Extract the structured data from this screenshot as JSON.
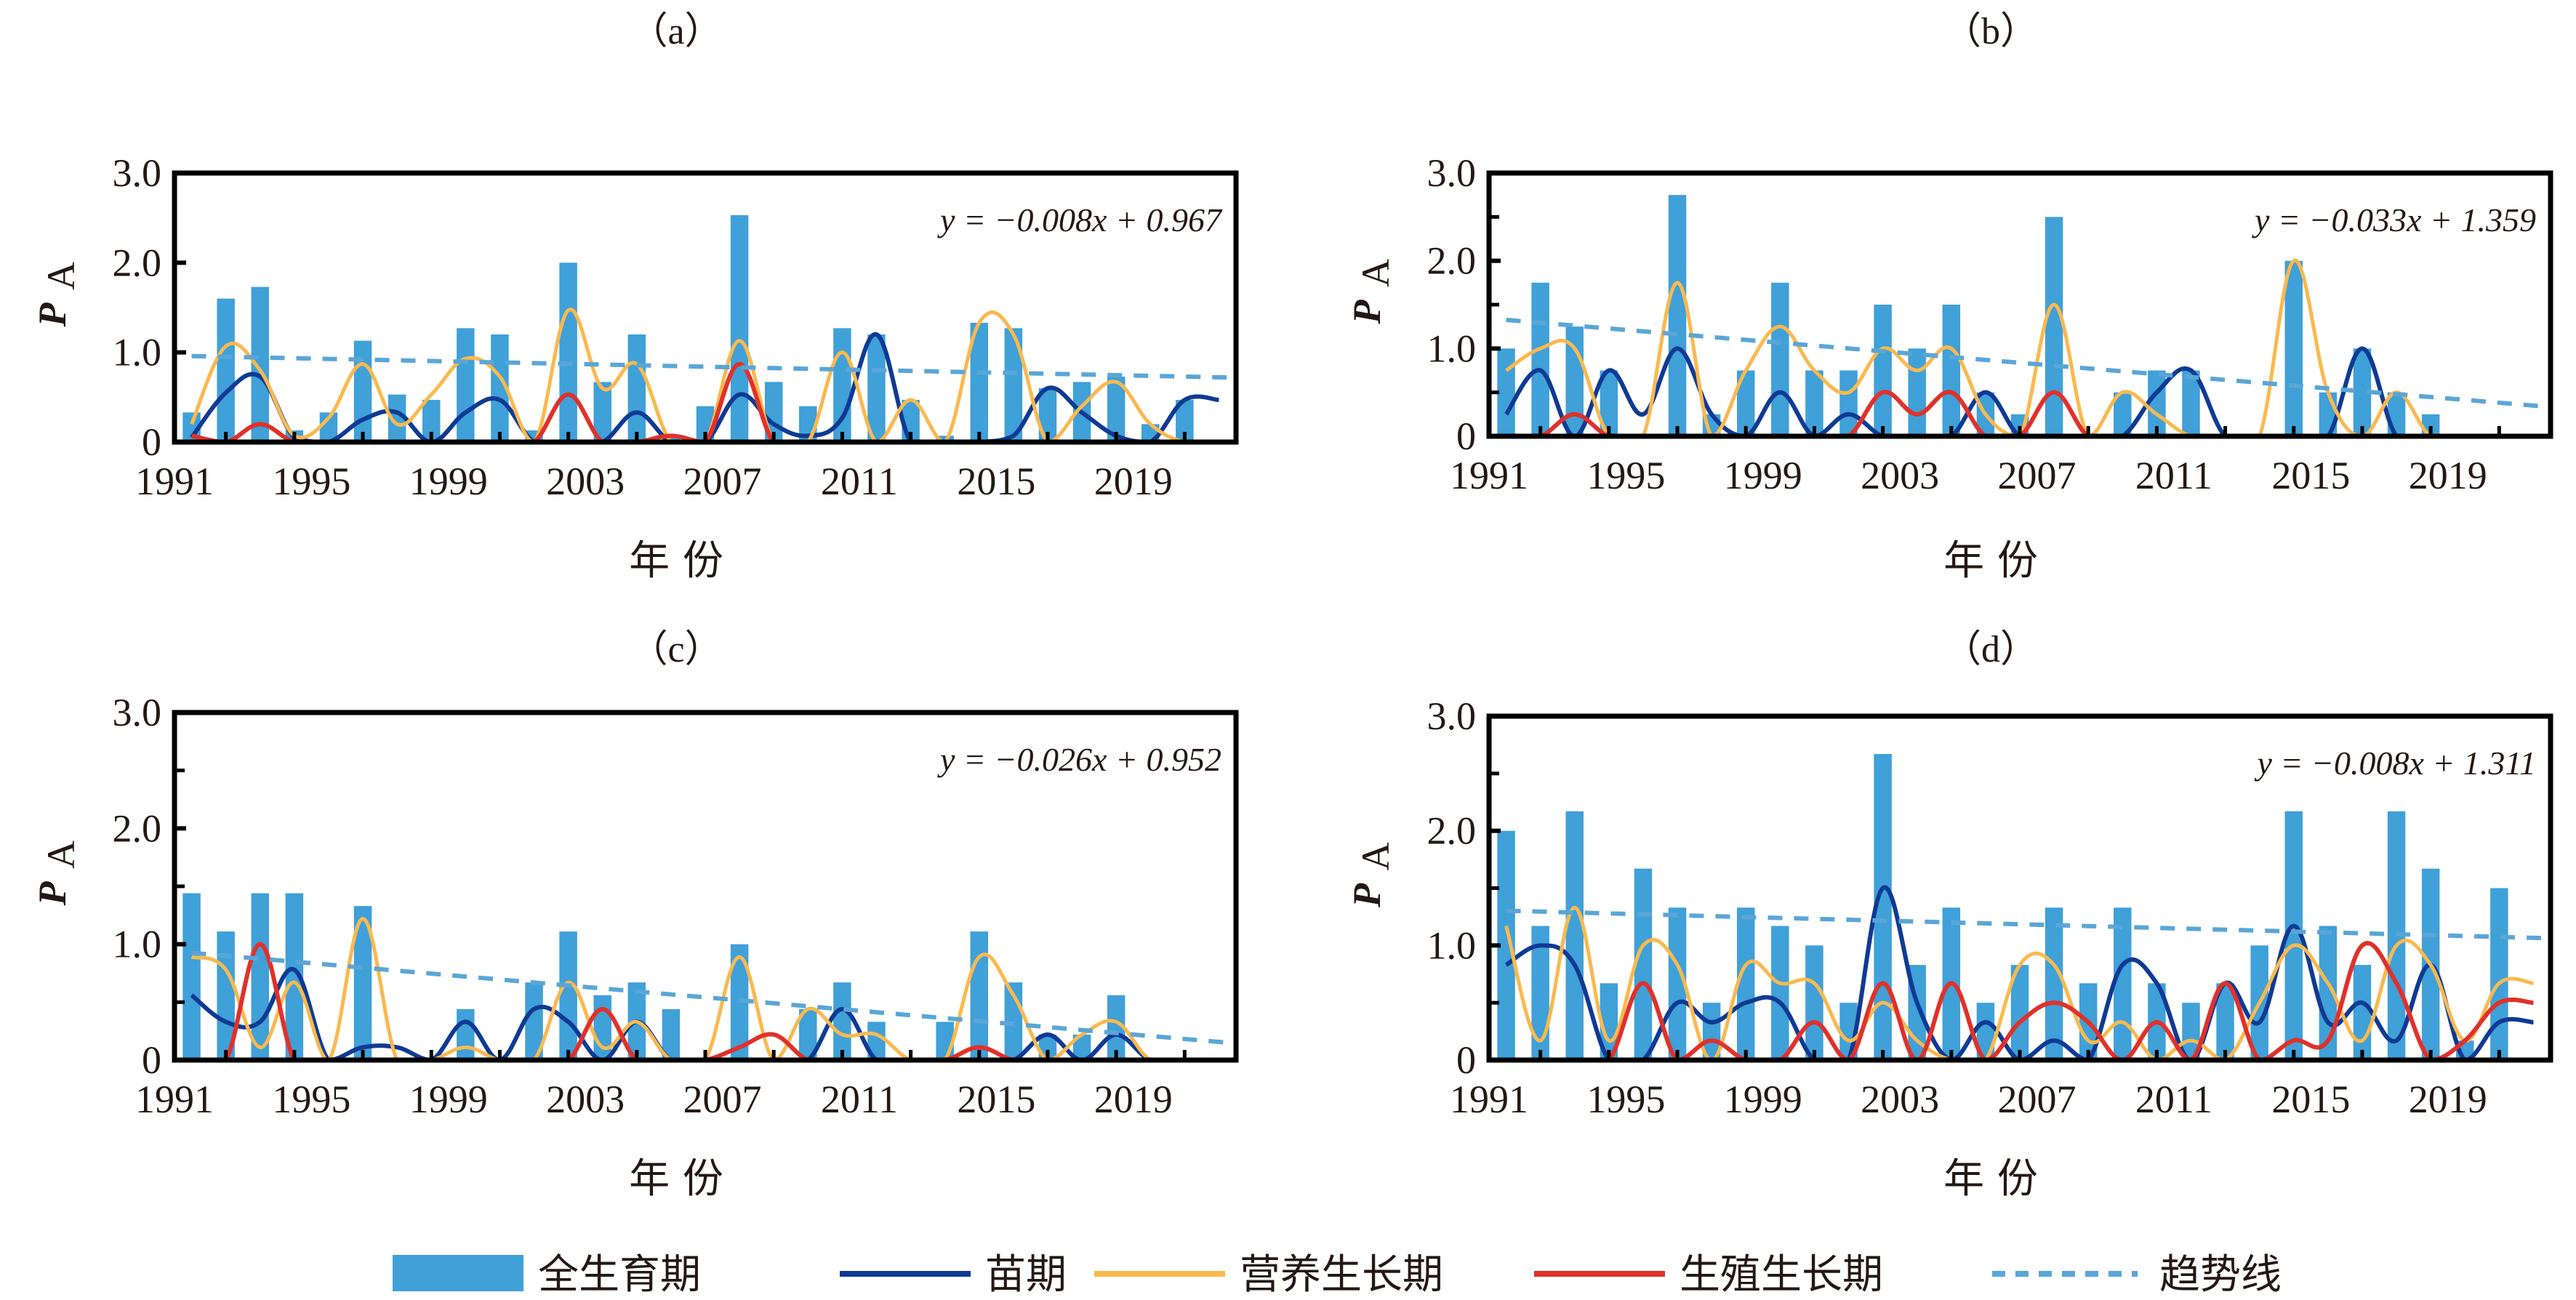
{
  "colors": {
    "bar": "#40a0d8",
    "seedling": "#0f3a94",
    "vegetative": "#f9b94e",
    "reproductive": "#e0312a",
    "trend": "#5aa6d6"
  },
  "legend": {
    "placement": "bottom-center",
    "items": [
      {
        "key": "bar",
        "label": "全生育期",
        "type": "bar"
      },
      {
        "key": "seedling",
        "label": "苗期",
        "type": "line"
      },
      {
        "key": "vegetative",
        "label": "营养生长期",
        "type": "line"
      },
      {
        "key": "reproductive",
        "label": "生殖生长期",
        "type": "line"
      },
      {
        "key": "trend",
        "label": "趋势线",
        "type": "dashed"
      }
    ]
  },
  "chart_data": [
    {
      "type": "bar",
      "panel_label": "（a）",
      "xlabel": "年 份",
      "ylabel": "P",
      "ylabel_sub": "A",
      "equation": "y = −0.008x + 0.967",
      "ylim": [
        0,
        3.0
      ],
      "yticks": [
        "0",
        "1.0",
        "2.0",
        "3.0"
      ],
      "xticks": [
        "1991",
        "1995",
        "1999",
        "2003",
        "2007",
        "2011",
        "2015",
        "2019"
      ],
      "years": [
        1991,
        1992,
        1993,
        1994,
        1995,
        1996,
        1997,
        1998,
        1999,
        2000,
        2001,
        2002,
        2003,
        2004,
        2005,
        2006,
        2007,
        2008,
        2009,
        2010,
        2011,
        2012,
        2013,
        2014,
        2015,
        2016,
        2017,
        2018,
        2019,
        2020,
        2021
      ],
      "series": [
        {
          "name": "全生育期",
          "key": "bar",
          "values": [
            0.33,
            1.6,
            1.73,
            0.13,
            0.33,
            1.13,
            0.53,
            0.47,
            1.27,
            1.2,
            0.13,
            2.0,
            0.67,
            1.2,
            0.07,
            0.4,
            2.53,
            0.67,
            0.4,
            1.27,
            1.2,
            0.47,
            0.07,
            1.33,
            1.27,
            0.6,
            0.67,
            0.73,
            0.2,
            0.47,
            0.0
          ]
        },
        {
          "name": "苗期",
          "key": "seedling",
          "values": [
            0.05,
            0.55,
            0.73,
            0.05,
            0.0,
            0.25,
            0.33,
            0.0,
            0.33,
            0.47,
            0.0,
            0.0,
            0.0,
            0.33,
            0.0,
            0.0,
            0.53,
            0.2,
            0.07,
            0.27,
            1.2,
            0.0,
            0.0,
            0.0,
            0.07,
            0.6,
            0.33,
            0.07,
            0.0,
            0.47,
            0.47
          ]
        },
        {
          "name": "营养生长期",
          "key": "vegetative",
          "values": [
            0.2,
            1.07,
            0.8,
            0.07,
            0.27,
            0.87,
            0.2,
            0.53,
            0.93,
            0.73,
            0.0,
            1.47,
            0.6,
            0.87,
            0.0,
            0.0,
            1.13,
            0.0,
            0.0,
            1.0,
            0.0,
            0.47,
            0.0,
            1.33,
            1.2,
            0.0,
            0.4,
            0.67,
            0.2,
            0.0,
            0.0
          ]
        },
        {
          "name": "生殖生长期",
          "key": "reproductive",
          "values": [
            0.07,
            0.0,
            0.2,
            0.0,
            0.0,
            0.0,
            0.0,
            0.0,
            0.0,
            0.0,
            0.0,
            0.53,
            0.0,
            0.0,
            0.07,
            0.0,
            0.87,
            0.0,
            0.0,
            0.0,
            0.0,
            0.0,
            0.0,
            0.0,
            0.0,
            0.0,
            0.0,
            0.0,
            0.0,
            0.0,
            0.0
          ]
        }
      ],
      "trend": {
        "slope": -0.008,
        "intercept": 0.967
      }
    },
    {
      "type": "bar",
      "panel_label": "（b）",
      "xlabel": "年 份",
      "ylabel": "P",
      "ylabel_sub": "A",
      "equation": "y = −0.033x + 1.359",
      "ylim": [
        0,
        3.0
      ],
      "yticks": [
        "0",
        "1.0",
        "2.0",
        "3.0"
      ],
      "xticks": [
        "1991",
        "1995",
        "1999",
        "2003",
        "2007",
        "2011",
        "2015",
        "2019"
      ],
      "years": [
        1991,
        1992,
        1993,
        1994,
        1995,
        1996,
        1997,
        1998,
        1999,
        2000,
        2001,
        2002,
        2003,
        2004,
        2005,
        2006,
        2007,
        2008,
        2009,
        2010,
        2011,
        2012,
        2013,
        2014,
        2015,
        2016,
        2017,
        2018,
        2019,
        2020,
        2021
      ],
      "series": [
        {
          "name": "全生育期",
          "key": "bar",
          "values": [
            1.0,
            1.75,
            1.25,
            0.75,
            0.0,
            2.75,
            0.25,
            0.75,
            1.75,
            0.75,
            0.75,
            1.5,
            1.0,
            1.5,
            0.5,
            0.25,
            2.5,
            0.0,
            0.5,
            0.75,
            0.75,
            0.0,
            0.0,
            2.0,
            0.5,
            1.0,
            0.5,
            0.25,
            0.0,
            0.0,
            0.0
          ]
        },
        {
          "name": "苗期",
          "key": "seedling",
          "values": [
            0.25,
            0.75,
            0.0,
            0.75,
            0.25,
            1.0,
            0.25,
            0.0,
            0.5,
            0.0,
            0.25,
            0.0,
            0.0,
            0.0,
            0.5,
            0.0,
            0.0,
            0.0,
            0.0,
            0.5,
            0.75,
            0.0,
            0.0,
            0.0,
            0.0,
            1.0,
            0.0,
            0.0,
            0.0,
            0.0,
            0.0
          ]
        },
        {
          "name": "营养生长期",
          "key": "vegetative",
          "values": [
            0.75,
            1.0,
            1.0,
            0.0,
            0.0,
            1.75,
            0.0,
            0.75,
            1.25,
            0.75,
            0.5,
            1.0,
            0.75,
            1.0,
            0.25,
            0.0,
            1.5,
            0.0,
            0.5,
            0.25,
            0.0,
            0.0,
            0.0,
            2.0,
            0.5,
            0.0,
            0.5,
            0.0,
            0.0,
            0.0,
            0.0
          ]
        },
        {
          "name": "生殖生长期",
          "key": "reproductive",
          "values": [
            0.0,
            0.0,
            0.25,
            0.0,
            0.0,
            0.0,
            0.0,
            0.0,
            0.0,
            0.0,
            0.0,
            0.5,
            0.25,
            0.5,
            0.0,
            0.0,
            0.5,
            0.0,
            0.0,
            0.0,
            0.0,
            0.0,
            0.0,
            0.0,
            0.0,
            0.0,
            0.0,
            0.0,
            0.0,
            0.0,
            0.0
          ]
        }
      ],
      "trend": {
        "slope": -0.033,
        "intercept": 1.359
      }
    },
    {
      "type": "bar",
      "panel_label": "（c）",
      "xlabel": "年 份",
      "ylabel": "P",
      "ylabel_sub": "A",
      "equation": "y = −0.026x + 0.952",
      "ylim": [
        0,
        3.0
      ],
      "yticks": [
        "0",
        "1.0",
        "2.0",
        "3.0"
      ],
      "xticks": [
        "1991",
        "1995",
        "1999",
        "2003",
        "2007",
        "2011",
        "2015",
        "2019"
      ],
      "years": [
        1991,
        1992,
        1993,
        1994,
        1995,
        1996,
        1997,
        1998,
        1999,
        2000,
        2001,
        2002,
        2003,
        2004,
        2005,
        2006,
        2007,
        2008,
        2009,
        2010,
        2011,
        2012,
        2013,
        2014,
        2015,
        2016,
        2017,
        2018,
        2019,
        2020,
        2021
      ],
      "series": [
        {
          "name": "全生育期",
          "key": "bar",
          "values": [
            1.44,
            1.11,
            1.44,
            1.44,
            0.0,
            1.33,
            0.0,
            0.0,
            0.44,
            0.0,
            0.67,
            1.11,
            0.56,
            0.67,
            0.44,
            0.0,
            1.0,
            0.0,
            0.44,
            0.67,
            0.33,
            0.0,
            0.33,
            1.11,
            0.67,
            0.22,
            0.22,
            0.56,
            0.0,
            0.0,
            0.0
          ]
        },
        {
          "name": "苗期",
          "key": "seedling",
          "values": [
            0.56,
            0.33,
            0.33,
            0.78,
            0.0,
            0.11,
            0.11,
            0.0,
            0.33,
            0.0,
            0.44,
            0.33,
            0.0,
            0.33,
            0.0,
            0.0,
            0.0,
            0.0,
            0.0,
            0.44,
            0.0,
            0.0,
            0.0,
            0.0,
            0.0,
            0.22,
            0.0,
            0.22,
            0.0,
            0.0,
            0.0
          ]
        },
        {
          "name": "营养生长期",
          "key": "vegetative",
          "values": [
            0.89,
            0.78,
            0.11,
            0.67,
            0.0,
            1.22,
            0.0,
            0.0,
            0.11,
            0.0,
            0.0,
            0.67,
            0.11,
            0.33,
            0.0,
            0.0,
            0.89,
            0.0,
            0.44,
            0.22,
            0.22,
            0.0,
            0.0,
            0.89,
            0.56,
            0.0,
            0.22,
            0.33,
            0.0,
            0.0,
            0.0
          ]
        },
        {
          "name": "生殖生长期",
          "key": "reproductive",
          "values": [
            0.0,
            0.0,
            1.0,
            0.0,
            0.0,
            0.0,
            0.0,
            0.0,
            0.0,
            0.0,
            0.0,
            0.0,
            0.44,
            0.0,
            0.0,
            0.0,
            0.11,
            0.22,
            0.0,
            0.0,
            0.0,
            0.0,
            0.0,
            0.11,
            0.0,
            0.0,
            0.0,
            0.0,
            0.0,
            0.0,
            0.0
          ]
        }
      ],
      "trend": {
        "slope": -0.026,
        "intercept": 0.952
      }
    },
    {
      "type": "bar",
      "panel_label": "（d）",
      "xlabel": "年 份",
      "ylabel": "P",
      "ylabel_sub": "A",
      "equation": "y = −0.008x + 1.311",
      "ylim": [
        0,
        3.0
      ],
      "yticks": [
        "0",
        "1.0",
        "2.0",
        "3.0"
      ],
      "xticks": [
        "1991",
        "1995",
        "1999",
        "2003",
        "2007",
        "2011",
        "2015",
        "2019"
      ],
      "years": [
        1991,
        1992,
        1993,
        1994,
        1995,
        1996,
        1997,
        1998,
        1999,
        2000,
        2001,
        2002,
        2003,
        2004,
        2005,
        2006,
        2007,
        2008,
        2009,
        2010,
        2011,
        2012,
        2013,
        2014,
        2015,
        2016,
        2017,
        2018,
        2019,
        2020,
        2021
      ],
      "series": [
        {
          "name": "全生育期",
          "key": "bar",
          "values": [
            2.0,
            1.17,
            2.17,
            0.67,
            1.67,
            1.33,
            0.5,
            1.33,
            1.17,
            1.0,
            0.5,
            2.67,
            0.83,
            1.33,
            0.5,
            0.83,
            1.33,
            0.67,
            1.33,
            0.67,
            0.5,
            0.67,
            1.0,
            2.17,
            1.17,
            0.83,
            2.17,
            1.67,
            0.17,
            1.5,
            0.0
          ]
        },
        {
          "name": "苗期",
          "key": "seedling",
          "values": [
            0.83,
            1.0,
            0.83,
            0.0,
            0.0,
            0.5,
            0.33,
            0.5,
            0.5,
            0.0,
            0.0,
            1.5,
            0.5,
            0.0,
            0.33,
            0.0,
            0.17,
            0.0,
            0.83,
            0.67,
            0.0,
            0.67,
            0.33,
            1.17,
            0.33,
            0.5,
            0.17,
            0.83,
            0.0,
            0.33,
            0.33
          ]
        },
        {
          "name": "营养生长期",
          "key": "vegetative",
          "values": [
            1.17,
            0.17,
            1.33,
            0.17,
            1.0,
            0.83,
            0.0,
            0.83,
            0.67,
            0.67,
            0.17,
            0.5,
            0.17,
            0.0,
            0.0,
            0.83,
            0.83,
            0.17,
            0.33,
            0.0,
            0.17,
            0.0,
            0.5,
            1.0,
            0.67,
            0.17,
            1.0,
            0.83,
            0.17,
            0.67,
            0.67
          ]
        },
        {
          "name": "生殖生长期",
          "key": "reproductive",
          "values": [
            0.0,
            0.0,
            0.0,
            0.0,
            0.67,
            0.0,
            0.17,
            0.0,
            0.0,
            0.33,
            0.0,
            0.67,
            0.0,
            0.67,
            0.0,
            0.33,
            0.5,
            0.33,
            0.0,
            0.33,
            0.0,
            0.67,
            0.0,
            0.17,
            0.17,
            1.0,
            0.67,
            0.0,
            0.17,
            0.5,
            0.5
          ]
        }
      ],
      "trend": {
        "slope": -0.008,
        "intercept": 1.311
      }
    }
  ]
}
